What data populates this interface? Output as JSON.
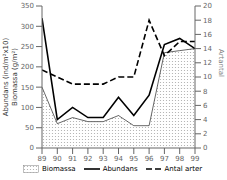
{
  "chart_data": {
    "type": "line",
    "x": [
      89,
      90,
      91,
      92,
      93,
      94,
      95,
      96,
      97,
      98,
      99
    ],
    "xlim": [
      89,
      99
    ],
    "xticks": [
      89,
      90,
      91,
      92,
      93,
      94,
      95,
      96,
      97,
      98,
      99
    ],
    "ylim": [
      0,
      350
    ],
    "yticks": [
      0,
      50,
      100,
      150,
      200,
      250,
      300,
      350
    ],
    "y2lim": [
      0,
      20
    ],
    "y2ticks": [
      0,
      2,
      4,
      6,
      8,
      10,
      12,
      14,
      16,
      18,
      20
    ],
    "ylabel": "Abundans (ind/m²x10)\nBiomassa (g/m²)",
    "y2label": "Artantal",
    "grid": false,
    "legend": "bottom",
    "series": [
      {
        "name": "Biomassa",
        "type": "area",
        "color": "#aaaaaa",
        "values": [
          150,
          60,
          75,
          65,
          65,
          80,
          55,
          55,
          235,
          240,
          245
        ]
      },
      {
        "name": "Abundans",
        "type": "line",
        "color": "#000000",
        "line_style": "solid",
        "values": [
          320,
          70,
          100,
          75,
          75,
          125,
          80,
          130,
          255,
          270,
          245
        ]
      },
      {
        "name": "Antal arter",
        "type": "line",
        "color": "#000000",
        "line_style": "dashed",
        "axis": "y2",
        "values": [
          11,
          10,
          9,
          9,
          9,
          10,
          10,
          18,
          13,
          15,
          15
        ]
      }
    ]
  }
}
